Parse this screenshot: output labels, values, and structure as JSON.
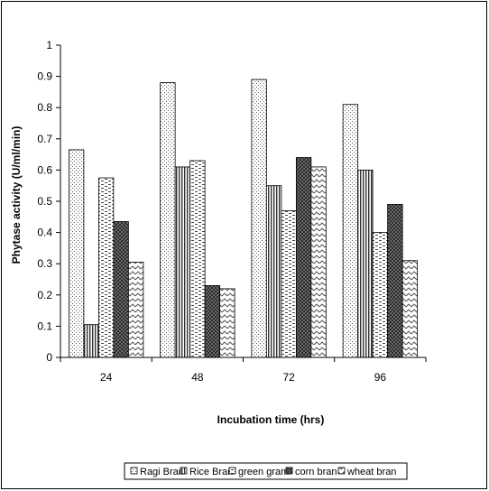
{
  "chart_data": {
    "type": "bar",
    "title": "",
    "xlabel": "Incubation time (hrs)",
    "ylabel": "Phytase activity (U/ml/min)",
    "ylim": [
      0,
      1
    ],
    "yticks": [
      "0",
      "0.1",
      "0.2",
      "0.3",
      "0.4",
      "0.5",
      "0.6",
      "0.7",
      "0.8",
      "0.9",
      "1"
    ],
    "categories": [
      "24",
      "48",
      "72",
      "96"
    ],
    "grid": false,
    "legend_position": "bottom",
    "series": [
      {
        "name": "Ragi Bran",
        "pattern": "dots",
        "values": [
          0.665,
          0.88,
          0.89,
          0.81
        ]
      },
      {
        "name": "Rice Bran",
        "pattern": "vertical-lines",
        "values": [
          0.105,
          0.61,
          0.55,
          0.6
        ]
      },
      {
        "name": "green gram",
        "pattern": "dashes",
        "values": [
          0.575,
          0.63,
          0.47,
          0.4
        ]
      },
      {
        "name": "corn bran",
        "pattern": "dark-checker",
        "values": [
          0.435,
          0.23,
          0.64,
          0.49
        ]
      },
      {
        "name": "wheat bran",
        "pattern": "zigzag",
        "values": [
          0.305,
          0.22,
          0.61,
          0.31
        ]
      }
    ]
  }
}
